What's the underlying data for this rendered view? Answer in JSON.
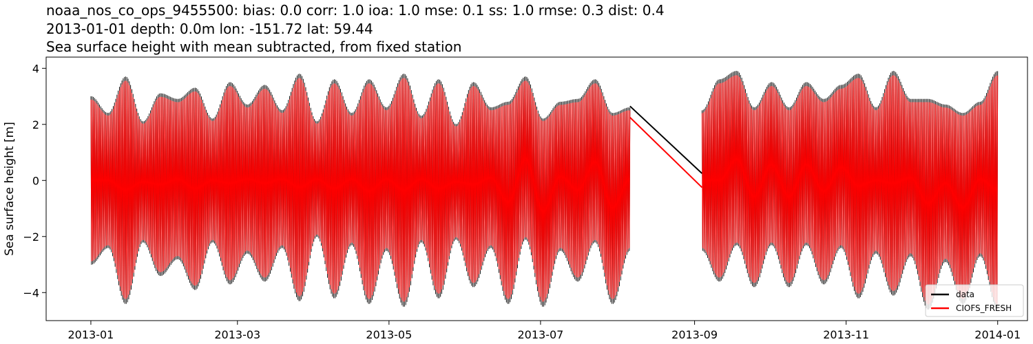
{
  "header": {
    "line1": "noaa_nos_co_ops_9455500: bias: 0.0  corr: 1.0  ioa: 1.0  mse: 0.1  ss: 1.0  rmse: 0.3  dist: 0.4",
    "line2": "2013-01-01 depth: 0.0m lon: -151.72 lat: 59.44",
    "line3": "Sea surface height with mean subtracted, from fixed station"
  },
  "chart_data": {
    "type": "line",
    "title": "Sea surface height with mean subtracted, from fixed station",
    "xlabel": "",
    "ylabel": "Sea surface height [m]",
    "xlim": [
      "2012-12-14",
      "2014-01-13"
    ],
    "ylim": [
      -5,
      4.4
    ],
    "xticks": [
      "2013-01",
      "2013-03",
      "2013-05",
      "2013-07",
      "2013-09",
      "2013-11",
      "2014-01"
    ],
    "yticks": [
      4,
      2,
      0,
      -2,
      -4
    ],
    "ytick_labels": [
      "4",
      "2",
      "0",
      "−2",
      "−4"
    ],
    "grid": false,
    "legend_position": "lower-right",
    "data_gap": {
      "start": "2013-08-06",
      "end": "2013-09-04"
    },
    "series": [
      {
        "name": "data",
        "color": "#000000",
        "linewidth": 2,
        "envelope": {
          "x": [
            "2013-01-01",
            "2013-01-08",
            "2013-01-15",
            "2013-01-22",
            "2013-01-29",
            "2013-02-05",
            "2013-02-12",
            "2013-02-19",
            "2013-02-26",
            "2013-03-05",
            "2013-03-12",
            "2013-03-19",
            "2013-03-26",
            "2013-04-02",
            "2013-04-09",
            "2013-04-16",
            "2013-04-23",
            "2013-04-30",
            "2013-05-07",
            "2013-05-14",
            "2013-05-21",
            "2013-05-28",
            "2013-06-04",
            "2013-06-11",
            "2013-06-18",
            "2013-06-25",
            "2013-07-02",
            "2013-07-09",
            "2013-07-16",
            "2013-07-23",
            "2013-07-30",
            "2013-08-06",
            "2013-09-04",
            "2013-09-11",
            "2013-09-18",
            "2013-09-25",
            "2013-10-02",
            "2013-10-09",
            "2013-10-16",
            "2013-10-23",
            "2013-10-30",
            "2013-11-06",
            "2013-11-13",
            "2013-11-20",
            "2013-11-27",
            "2013-12-04",
            "2013-12-11",
            "2013-12-18",
            "2013-12-25",
            "2014-01-01"
          ],
          "max": [
            3.0,
            2.4,
            3.7,
            2.1,
            3.1,
            2.9,
            3.3,
            2.2,
            3.5,
            2.7,
            3.4,
            2.5,
            3.8,
            2.1,
            3.6,
            2.4,
            3.6,
            2.6,
            3.8,
            2.3,
            3.6,
            2.0,
            3.5,
            2.6,
            2.8,
            3.7,
            2.2,
            2.8,
            2.9,
            3.6,
            2.4,
            2.6,
            2.5,
            3.6,
            3.9,
            2.6,
            3.5,
            2.6,
            3.5,
            2.9,
            3.4,
            3.8,
            2.6,
            3.9,
            2.9,
            2.9,
            2.7,
            2.4,
            2.8,
            3.9
          ],
          "min": [
            -3.0,
            -2.4,
            -4.4,
            -2.2,
            -3.4,
            -2.8,
            -3.9,
            -2.2,
            -3.7,
            -2.6,
            -3.6,
            -2.4,
            -4.3,
            -2.0,
            -4.2,
            -2.3,
            -4.4,
            -2.5,
            -4.5,
            -2.2,
            -4.2,
            -2.1,
            -3.8,
            -2.4,
            -4.4,
            -2.1,
            -4.5,
            -2.5,
            -3.6,
            -2.2,
            -4.4,
            -2.5,
            -2.5,
            -3.6,
            -2.3,
            -3.8,
            -2.3,
            -3.8,
            -2.3,
            -3.7,
            -2.4,
            -4.2,
            -2.6,
            -4.1,
            -2.7,
            -4.6,
            -2.9,
            -4.4,
            -2.7,
            -4.6
          ]
        },
        "gap_line": {
          "x": [
            "2013-08-06",
            "2013-09-04"
          ],
          "y": [
            2.65,
            0.25
          ]
        }
      },
      {
        "name": "CIOFS_FRESH",
        "color": "#ff0000",
        "linewidth": 2,
        "envelope_scale": 0.96,
        "gap_line": {
          "x": [
            "2013-08-06",
            "2013-09-04"
          ],
          "y": [
            2.25,
            -0.25
          ]
        }
      }
    ]
  }
}
